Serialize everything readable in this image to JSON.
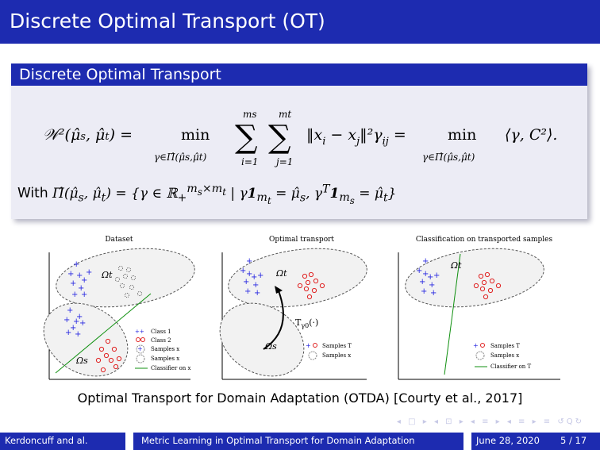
{
  "slide": {
    "title": "Discrete Optimal Transport (OT)",
    "block_title": "Discrete Optimal Transport",
    "with_prefix": "With ",
    "caption": "Optimal Transport for Domain Adaptation (OTDA) [Courty et al., 2017]",
    "nav_symbols": "◂ □ ▸ ◂ ⊡ ▸ ◂ ≡ ▸ ◂ ≡ ▸ ≡ ↺Q↻"
  },
  "figure": {
    "panels": [
      {
        "title": "Dataset"
      },
      {
        "title": "Optimal transport"
      },
      {
        "title": "Classification on transported samples"
      }
    ],
    "legend1": [
      "Class 1",
      "Class 2",
      "Samples x",
      "Samples x",
      "Classifier on x"
    ],
    "legend2": [
      "Samples T",
      "Samples x"
    ],
    "legend3": [
      "Samples T",
      "Samples x",
      "Classifier on T"
    ]
  },
  "footer": {
    "author": "Kerdoncuff and al.",
    "talk": "Metric Learning in Optimal Transport for Domain Adaptation",
    "date": "June 28, 2020",
    "page": "5 / 17"
  },
  "colors": {
    "beamer_blue": "#1d2bb0",
    "block_bg": "#ececf5",
    "class1": "#2222e0",
    "class2": "#e02020",
    "classifier": "#109010"
  }
}
